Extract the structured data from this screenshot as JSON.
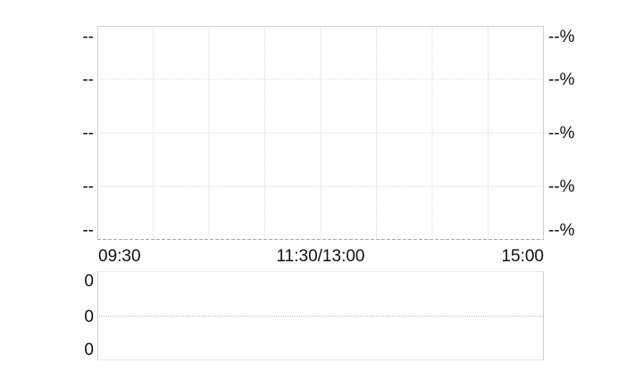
{
  "chart_data": [
    {
      "type": "line",
      "title": "",
      "x_tick_labels": [
        "09:30",
        "11:30/13:00",
        "15:00"
      ],
      "y_left_tick_labels": [
        "--",
        "--",
        "--",
        "--",
        "--"
      ],
      "y_right_tick_labels": [
        "--%",
        "--%",
        "--%",
        "--%",
        "--%"
      ],
      "series": [],
      "grid": true,
      "vertical_grid_divisions": 8
    },
    {
      "type": "bar",
      "title": "",
      "y_tick_labels": [
        "0",
        "0",
        "0"
      ],
      "series": [],
      "grid": true
    }
  ],
  "colors": {
    "border": "#d0d0d0",
    "grid": "#d8d8d8",
    "text": "#111111"
  }
}
